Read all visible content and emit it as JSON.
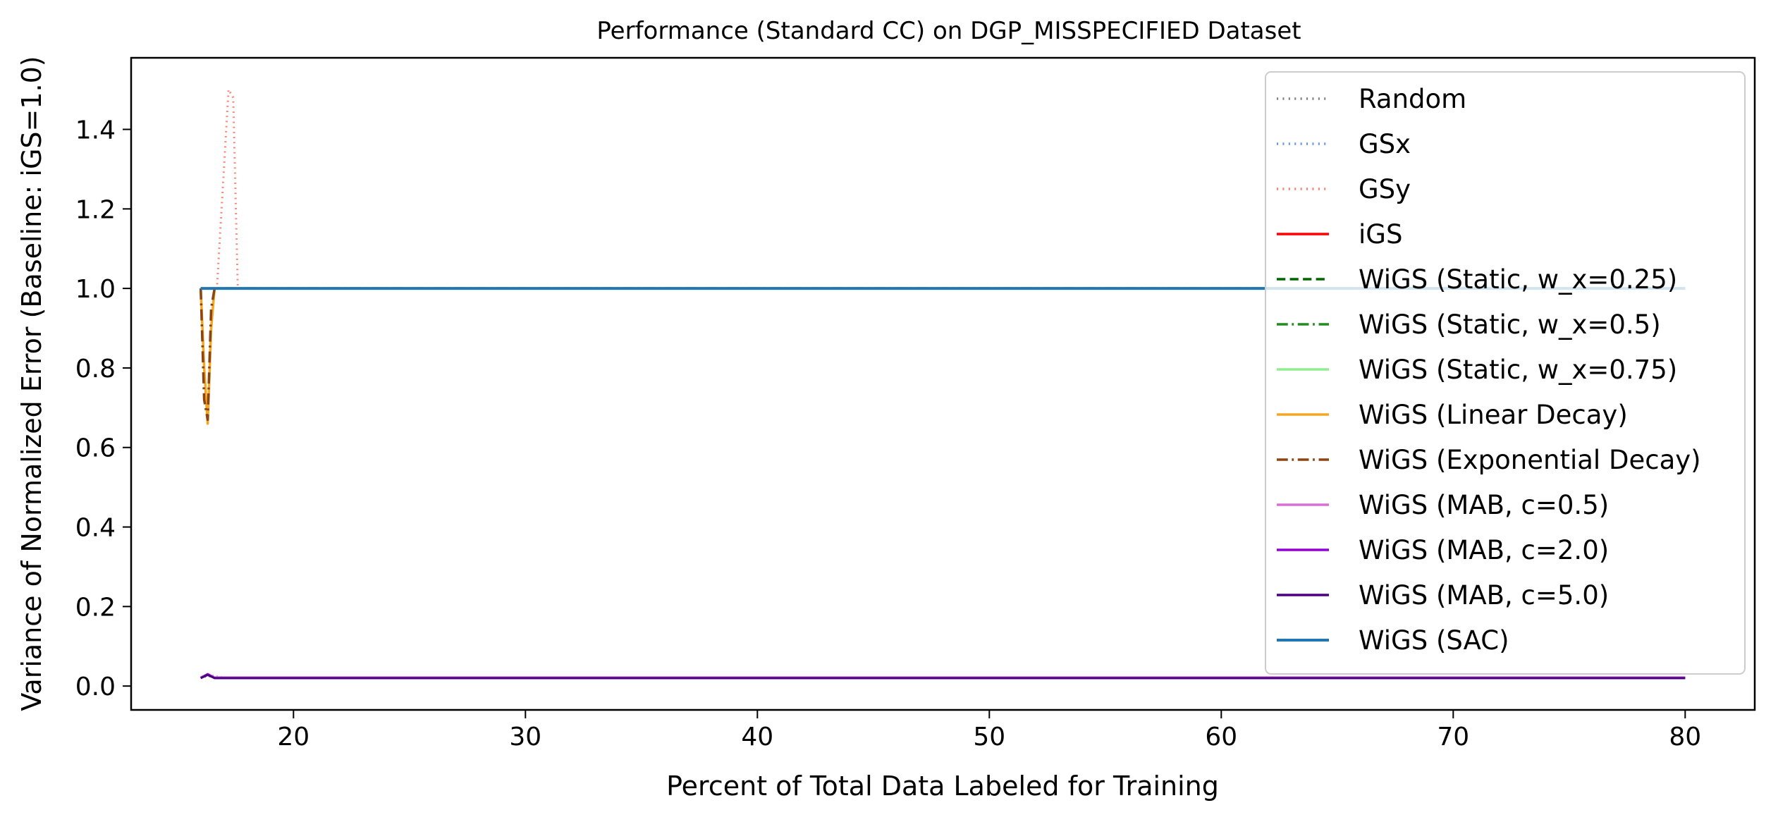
{
  "chart_data": {
    "type": "line",
    "title": "Performance (Standard CC) on DGP_MISSPECIFIED Dataset",
    "xlabel": "Percent of Total Data Labeled for Training",
    "ylabel": "Variance of Normalized Error (Baseline: iGS=1.0)",
    "xlim": [
      13,
      83
    ],
    "ylim": [
      -0.06,
      1.58
    ],
    "xticks": [
      20,
      30,
      40,
      50,
      60,
      70,
      80
    ],
    "yticks": [
      0.0,
      0.2,
      0.4,
      0.6,
      0.8,
      1.0,
      1.2,
      1.4
    ],
    "xtick_labels": [
      "20",
      "30",
      "40",
      "50",
      "60",
      "70",
      "80"
    ],
    "ytick_labels": [
      "0.0",
      "0.2",
      "0.4",
      "0.6",
      "0.8",
      "1.0",
      "1.2",
      "1.4"
    ],
    "grid": false,
    "legend_position": "upper right",
    "series": [
      {
        "name": "Random",
        "color": "#808080",
        "style": "dotted",
        "width": 2.5,
        "x": [
          16.0,
          16.3,
          16.6,
          17.0,
          80.0
        ],
        "y": [
          0.02,
          0.025,
          0.022,
          0.02,
          0.02
        ]
      },
      {
        "name": "GSx",
        "color": "#6495ed",
        "style": "dotted",
        "width": 2.5,
        "x": [
          16.0,
          16.3,
          16.6,
          17.0,
          80.0
        ],
        "y": [
          0.022,
          0.03,
          0.025,
          0.022,
          0.022
        ]
      },
      {
        "name": "GSy",
        "color": "#fa8072",
        "style": "dotted",
        "width": 3,
        "x": [
          16.0,
          16.4,
          16.7,
          17.0,
          17.2,
          17.4,
          17.6,
          18.0,
          80.0
        ],
        "y": [
          1.0,
          1.0,
          1.0,
          1.3,
          1.5,
          1.48,
          1.0,
          1.0,
          1.0
        ]
      },
      {
        "name": "iGS",
        "color": "#ff0000",
        "style": "solid",
        "width": 3,
        "x": [
          16.0,
          80.0
        ],
        "y": [
          1.0,
          1.0
        ]
      },
      {
        "name": "WiGS (Static, w_x=0.25)",
        "color": "#006400",
        "style": "dashed",
        "width": 3,
        "x": [
          16.0,
          80.0
        ],
        "y": [
          1.0,
          1.0
        ]
      },
      {
        "name": "WiGS (Static, w_x=0.5)",
        "color": "#228b22",
        "style": "dashdot",
        "width": 3,
        "x": [
          16.0,
          80.0
        ],
        "y": [
          1.0,
          1.0
        ]
      },
      {
        "name": "WiGS (Static, w_x=0.75)",
        "color": "#90ee90",
        "style": "solid",
        "width": 3,
        "x": [
          16.0,
          80.0
        ],
        "y": [
          1.0,
          1.0
        ]
      },
      {
        "name": "WiGS (Linear Decay)",
        "color": "#f5a623",
        "style": "solid",
        "width": 3.5,
        "x": [
          16.0,
          16.15,
          16.3,
          16.45,
          16.6,
          80.0
        ],
        "y": [
          1.0,
          0.8,
          0.66,
          0.9,
          1.0,
          1.0
        ]
      },
      {
        "name": "WiGS (Exponential Decay)",
        "color": "#8b4513",
        "style": "dashdot",
        "width": 3.5,
        "x": [
          16.0,
          16.15,
          16.3,
          16.45,
          16.6,
          80.0
        ],
        "y": [
          1.0,
          0.72,
          0.67,
          0.95,
          1.0,
          1.0
        ]
      },
      {
        "name": "WiGS (MAB, c=0.5)",
        "color": "#da70d6",
        "style": "solid",
        "width": 3,
        "x": [
          16.0,
          16.3,
          16.6,
          80.0
        ],
        "y": [
          0.022,
          0.03,
          0.022,
          0.022
        ]
      },
      {
        "name": "WiGS (MAB, c=2.0)",
        "color": "#9400d3",
        "style": "solid",
        "width": 3,
        "x": [
          16.0,
          16.3,
          16.6,
          80.0
        ],
        "y": [
          0.02,
          0.03,
          0.02,
          0.02
        ]
      },
      {
        "name": "WiGS (MAB, c=5.0)",
        "color": "#4b0082",
        "style": "solid",
        "width": 3,
        "x": [
          16.0,
          16.3,
          16.6,
          80.0
        ],
        "y": [
          0.02,
          0.028,
          0.02,
          0.02
        ]
      },
      {
        "name": "WiGS (SAC)",
        "color": "#1f77b4",
        "style": "solid",
        "width": 4,
        "x": [
          16.0,
          80.0
        ],
        "y": [
          1.0,
          1.0
        ]
      }
    ]
  }
}
